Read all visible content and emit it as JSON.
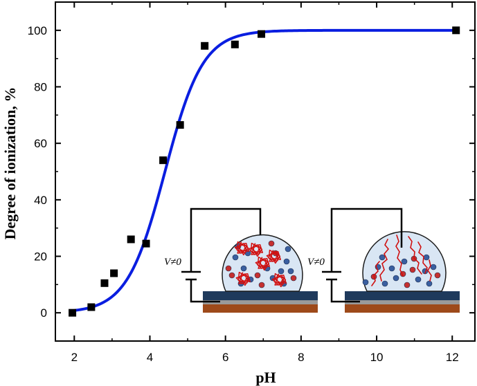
{
  "chart_data": {
    "type": "scatter",
    "xlabel": "pH",
    "ylabel": "Degree of ionization, %",
    "xlim": [
      1.5,
      12.6
    ],
    "ylim": [
      -10,
      110
    ],
    "xticks": [
      2,
      4,
      6,
      8,
      10,
      12
    ],
    "yticks": [
      0,
      20,
      40,
      60,
      80,
      100
    ],
    "grid": false,
    "series": [
      {
        "kind": "points",
        "marker": "square",
        "color": "#000000",
        "x": [
          1.95,
          2.45,
          2.8,
          3.05,
          3.5,
          3.9,
          4.35,
          4.8,
          5.45,
          6.25,
          6.95,
          12.1
        ],
        "y": [
          0,
          2,
          10.5,
          14,
          26,
          24.5,
          54,
          66.5,
          94.5,
          95,
          98.7,
          100
        ]
      },
      {
        "kind": "fit",
        "color": "#0a1ee0",
        "pKa": 4.4,
        "slope": 2.0,
        "x_range": [
          1.95,
          12.1
        ]
      }
    ],
    "insets": {
      "left": {
        "label": "V≠0",
        "state": "coiled-chains"
      },
      "right": {
        "label": "V≠0",
        "state": "extended-chains"
      }
    }
  }
}
